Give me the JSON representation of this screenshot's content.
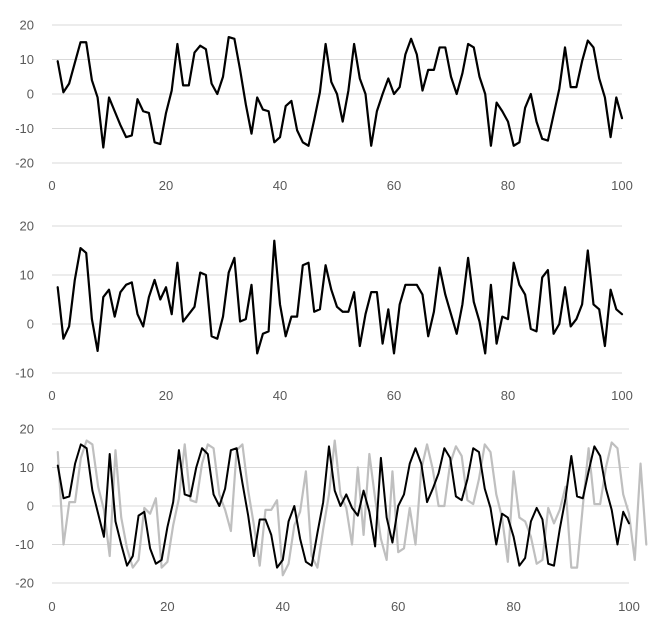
{
  "chart_data": [
    {
      "type": "line",
      "title": "",
      "xlabel": "",
      "ylabel": "",
      "xlim": [
        0,
        100
      ],
      "ylim": [
        -20,
        20
      ],
      "x_ticks": [
        "0",
        "20",
        "40",
        "60",
        "80",
        "100"
      ],
      "y_ticks": [
        "20",
        "10",
        "0",
        "-10",
        "-20"
      ],
      "grid": true,
      "legend": "none",
      "series": [
        {
          "color": "#000000",
          "x_start": 1,
          "values": [
            9.5,
            0.5,
            3,
            9,
            15,
            15,
            4,
            -1,
            -15.5,
            -1,
            -5,
            -9,
            -12.5,
            -12,
            -1.5,
            -5,
            -5.5,
            -14,
            -14.5,
            -5.5,
            1,
            14.5,
            2.5,
            2.5,
            12,
            14,
            13,
            3,
            0,
            5,
            16.5,
            16,
            7,
            -3,
            -11.5,
            -1,
            -4.5,
            -5,
            -14,
            -12.5,
            -3.5,
            -2,
            -10.5,
            -14,
            -15,
            -7.5,
            0.5,
            14.5,
            3.5,
            0,
            -8,
            1,
            14.5,
            4.5,
            0,
            -15,
            -5,
            0,
            4.5,
            0,
            2,
            11.5,
            16,
            11.5,
            1,
            7,
            7,
            13.5,
            13.5,
            5,
            0,
            6,
            14.5,
            13.5,
            5,
            0,
            -15,
            -2.5,
            -5,
            -8,
            -15,
            -14,
            -4,
            0,
            -8,
            -13,
            -13.5,
            -6,
            1.5,
            13.5,
            2,
            2,
            9.5,
            15.5,
            13.5,
            4.5,
            -1,
            -12.5,
            -1,
            -7
          ]
        }
      ]
    },
    {
      "type": "line",
      "title": "",
      "xlabel": "",
      "ylabel": "",
      "xlim": [
        0,
        100
      ],
      "ylim": [
        -10,
        20
      ],
      "x_ticks": [
        "0",
        "20",
        "40",
        "60",
        "80",
        "100"
      ],
      "y_ticks": [
        "20",
        "10",
        "0",
        "-10"
      ],
      "grid": true,
      "legend": "none",
      "series": [
        {
          "color": "#000000",
          "x_start": 1,
          "values": [
            7.5,
            -3,
            -0.5,
            9,
            15.5,
            14.5,
            1,
            -5.5,
            5.5,
            7,
            1.5,
            6.5,
            8,
            8.5,
            2,
            -0.5,
            5.5,
            9,
            5,
            7.5,
            2,
            12.5,
            0.5,
            2,
            3.5,
            10.5,
            10,
            -2.5,
            -3,
            1.5,
            10.5,
            13.5,
            0.5,
            1,
            8,
            -6,
            -2,
            -1.5,
            17,
            4,
            -2.5,
            1.5,
            1.5,
            12,
            12.5,
            2.5,
            3,
            12,
            7,
            3.5,
            2.5,
            2.5,
            6.5,
            -4.5,
            2,
            6.5,
            6.5,
            -4,
            3,
            -6,
            4,
            8,
            8,
            8,
            6,
            -2.5,
            2.5,
            11.5,
            6,
            2,
            -2,
            4,
            13.5,
            4.5,
            0.5,
            -6,
            8,
            -4,
            1.5,
            1,
            12.5,
            8,
            6,
            -1,
            -1.5,
            9.5,
            11,
            -2,
            0,
            7.5,
            -0.5,
            1,
            4,
            15,
            4,
            3,
            -4.5,
            7,
            3,
            2
          ]
        }
      ]
    },
    {
      "type": "line",
      "title": "",
      "xlabel": "",
      "ylabel": "",
      "xlim": [
        0,
        100
      ],
      "ylim": [
        -20,
        20
      ],
      "x_ticks": [
        "0",
        "20",
        "40",
        "60",
        "80",
        "100"
      ],
      "y_ticks": [
        "20",
        "10",
        "0",
        "-10",
        "-20"
      ],
      "grid": true,
      "legend": "none",
      "series": [
        {
          "color": "#bfbfbf",
          "x_start": 1,
          "values": [
            14,
            -10,
            1,
            1,
            12.5,
            17,
            16,
            5,
            -1,
            -13,
            14.5,
            -3,
            -11,
            -16,
            -14,
            -0.5,
            -2,
            2,
            -16,
            -14.5,
            -5,
            2,
            16,
            1.5,
            1,
            11,
            16,
            15,
            3,
            -1,
            -6.5,
            14.5,
            16,
            4,
            -5,
            -15.5,
            -1,
            -1,
            1.5,
            -18,
            -15,
            -5,
            -1.5,
            9,
            -13,
            -16,
            -6,
            3,
            17,
            3,
            -0.5,
            -10,
            10,
            -7.5,
            13.5,
            2,
            -8.5,
            -14,
            9,
            -12,
            -11,
            -0.5,
            -10,
            9.5,
            16,
            9.5,
            0,
            0,
            11,
            15.5,
            13,
            1.5,
            0.5,
            7,
            16,
            14,
            3,
            -3,
            -14.5,
            9,
            -3,
            -4,
            -8,
            -15,
            -14,
            -0.5,
            -4.5,
            -1,
            5,
            -16,
            -16,
            0,
            15,
            0.5,
            0.5,
            10,
            16.5,
            15,
            3,
            -2,
            -14,
            11,
            -10
          ]
        },
        {
          "color": "#000000",
          "x_start": 1,
          "values": [
            10.5,
            2,
            2.5,
            11,
            16,
            15,
            4,
            -2,
            -8,
            13.5,
            -4,
            -10,
            -15.5,
            -13,
            -2.5,
            -1.5,
            -11,
            -15,
            -14,
            -5.5,
            1,
            14.5,
            3,
            2.5,
            10,
            15,
            13.5,
            3,
            0,
            4.5,
            14.5,
            15,
            6,
            -2.5,
            -13,
            -3.5,
            -3.5,
            -7.5,
            -16,
            -14,
            -4,
            0,
            -8.5,
            -14.5,
            -15.5,
            -7,
            1,
            15.5,
            4,
            0,
            3,
            -0.5,
            -2.5,
            4,
            -1.5,
            -10.5,
            12.5,
            -3,
            -9.5,
            0,
            3,
            11,
            15,
            11,
            1,
            4.5,
            8.5,
            15,
            12.5,
            2.5,
            1.5,
            7,
            15,
            14,
            4.5,
            -0.5,
            -10,
            -2,
            -3,
            -8,
            -15.5,
            -13.5,
            -4,
            -0.5,
            -3.5,
            -15,
            -15.5,
            -6,
            2,
            13,
            2.5,
            2,
            9,
            15.5,
            13,
            4.5,
            -1,
            -10,
            -1.5,
            -4.5
          ]
        }
      ]
    }
  ]
}
